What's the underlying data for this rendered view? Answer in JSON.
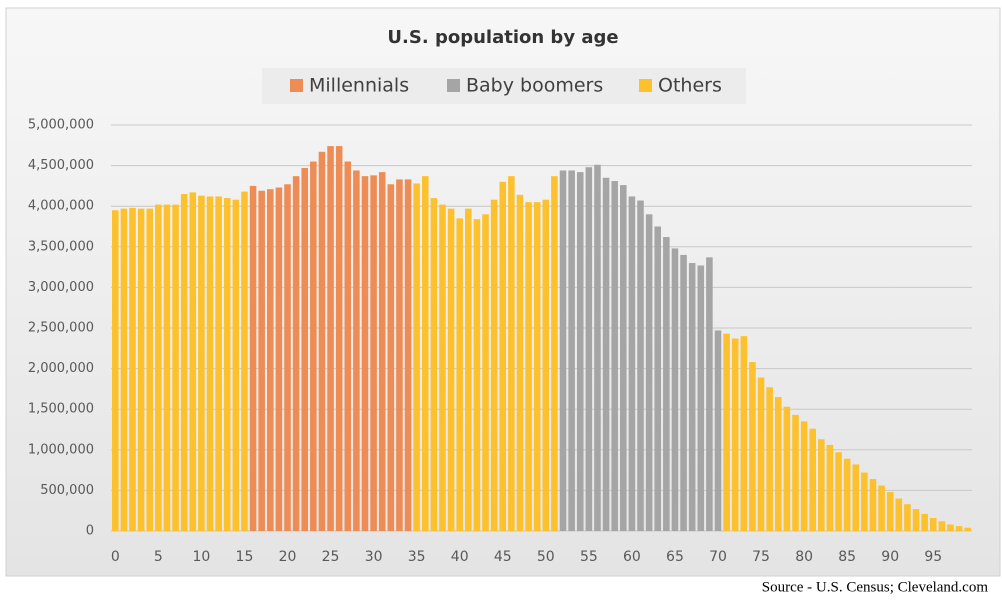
{
  "chart_data": {
    "type": "bar",
    "title": "U.S. population by age",
    "categories": [
      "0",
      null,
      null,
      null,
      null,
      "5",
      null,
      null,
      null,
      null,
      "10",
      null,
      null,
      null,
      null,
      "15",
      null,
      null,
      null,
      null,
      "20",
      null,
      null,
      null,
      null,
      "25",
      null,
      null,
      null,
      null,
      "30",
      null,
      null,
      null,
      null,
      "35",
      null,
      null,
      null,
      null,
      "40",
      null,
      null,
      null,
      null,
      "45",
      null,
      null,
      null,
      null,
      "50",
      null,
      null,
      null,
      null,
      "55",
      null,
      null,
      null,
      null,
      "60",
      null,
      null,
      null,
      null,
      "65",
      null,
      null,
      null,
      null,
      "70",
      null,
      null,
      null,
      null,
      "75",
      null,
      null,
      null,
      null,
      "80",
      null,
      null,
      null,
      null,
      "85",
      null,
      null,
      null,
      null,
      "90",
      null,
      null,
      null,
      null,
      "95",
      null,
      null,
      null,
      null
    ],
    "series": [
      {
        "name": "Millennials",
        "color": "#ed8c55",
        "values": [
          null,
          null,
          null,
          null,
          null,
          null,
          null,
          null,
          null,
          null,
          null,
          null,
          null,
          null,
          null,
          null,
          4250000,
          4190000,
          4210000,
          4230000,
          4270000,
          4370000,
          4470000,
          4550000,
          4670000,
          4740000,
          4740000,
          4550000,
          4440000,
          4370000,
          4380000,
          4420000,
          4270000,
          4330000,
          4330000,
          null,
          null,
          null,
          null,
          null,
          null,
          null,
          null,
          null,
          null,
          null,
          null,
          null,
          null,
          null,
          null,
          null,
          null,
          null,
          null,
          null,
          null,
          null,
          null,
          null,
          null,
          null,
          null,
          null,
          null,
          null,
          null,
          null,
          null,
          null,
          null,
          null,
          null,
          null,
          null,
          null,
          null,
          null,
          null,
          null,
          null,
          null,
          null,
          null,
          null,
          null,
          null,
          null,
          null,
          null,
          null,
          null,
          null,
          null,
          null,
          null,
          null,
          null,
          null,
          null
        ]
      },
      {
        "name": "Baby boomers",
        "color": "#a5a5a5",
        "values": [
          null,
          null,
          null,
          null,
          null,
          null,
          null,
          null,
          null,
          null,
          null,
          null,
          null,
          null,
          null,
          null,
          null,
          null,
          null,
          null,
          null,
          null,
          null,
          null,
          null,
          null,
          null,
          null,
          null,
          null,
          null,
          null,
          null,
          null,
          null,
          null,
          null,
          null,
          null,
          null,
          null,
          null,
          null,
          null,
          null,
          null,
          null,
          null,
          null,
          null,
          null,
          null,
          4440000,
          4440000,
          4420000,
          4480000,
          4510000,
          4350000,
          4310000,
          4260000,
          4120000,
          4070000,
          3900000,
          3750000,
          3620000,
          3480000,
          3400000,
          3300000,
          3270000,
          3370000,
          2470000,
          null,
          null,
          null,
          null,
          null,
          null,
          null,
          null,
          null,
          null,
          null,
          null,
          null,
          null,
          null,
          null,
          null,
          null,
          null,
          null,
          null,
          null,
          null,
          null,
          null,
          null,
          null,
          null,
          null
        ]
      },
      {
        "name": "Others",
        "color": "#fdc12d",
        "values": [
          3950000,
          3970000,
          3980000,
          3970000,
          3970000,
          4020000,
          4020000,
          4020000,
          4150000,
          4170000,
          4130000,
          4120000,
          4120000,
          4100000,
          4080000,
          4180000,
          null,
          null,
          null,
          null,
          null,
          null,
          null,
          null,
          null,
          null,
          null,
          null,
          null,
          null,
          null,
          null,
          null,
          null,
          null,
          4280000,
          4370000,
          4100000,
          4020000,
          3970000,
          3850000,
          3970000,
          3840000,
          3900000,
          4080000,
          4300000,
          4370000,
          4140000,
          4050000,
          4050000,
          4080000,
          4370000,
          null,
          null,
          null,
          null,
          null,
          null,
          null,
          null,
          null,
          null,
          null,
          null,
          null,
          null,
          null,
          null,
          null,
          null,
          null,
          2430000,
          2370000,
          2400000,
          2080000,
          1890000,
          1770000,
          1650000,
          1530000,
          1430000,
          1350000,
          1260000,
          1130000,
          1060000,
          970000,
          890000,
          820000,
          720000,
          640000,
          560000,
          480000,
          400000,
          330000,
          270000,
          210000,
          160000,
          120000,
          80000,
          60000,
          40000
        ]
      }
    ],
    "ylim": [
      0,
      5000000
    ],
    "yticks": [
      0,
      {
        "value": 500000,
        "label": "500,000"
      },
      {
        "value": 1000000,
        "label": "1,000,000"
      },
      {
        "value": 1500000,
        "label": "1,500,000"
      },
      {
        "value": 2000000,
        "label": "2,000,000"
      },
      {
        "value": 2500000,
        "label": "2,500,000"
      },
      {
        "value": 3000000,
        "label": "3,000,000"
      },
      {
        "value": 3500000,
        "label": "3,500,000"
      },
      {
        "value": 4000000,
        "label": "4,000,000"
      },
      {
        "value": 4500000,
        "label": "4,500,000"
      },
      {
        "value": 5000000,
        "label": "5,000,000"
      }
    ],
    "grid": true,
    "legend": "top"
  },
  "source": "Source - U.S. Census; Cleveland.com"
}
